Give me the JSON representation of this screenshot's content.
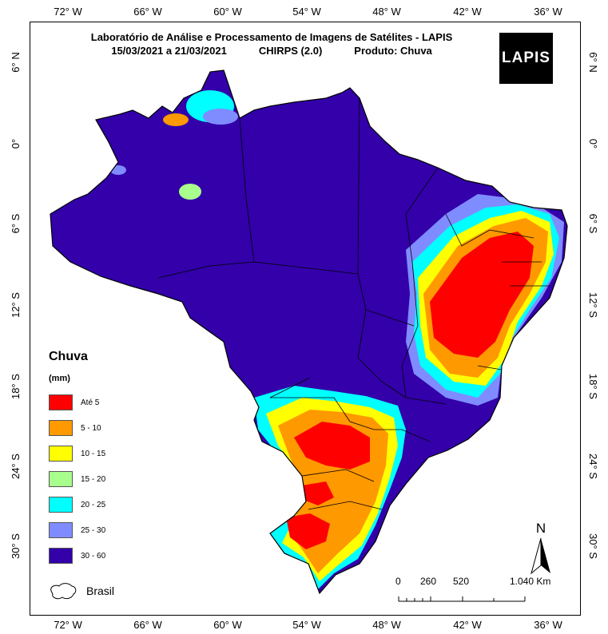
{
  "title": {
    "line1": "Laboratório de Análise e Processamento de Imagens de Satélites - LAPIS",
    "period": "15/03/2021  a 21/03/2021",
    "dataset": "CHIRPS (2.0)",
    "product": "Produto: Chuva"
  },
  "logo": {
    "text": "LAPIS"
  },
  "longitude_ticks": [
    "72° W",
    "66° W",
    "60° W",
    "54° W",
    "48° W",
    "42° W",
    "36° W"
  ],
  "latitude_ticks": [
    "6° N",
    "0°",
    "6° S",
    "12° S",
    "18° S",
    "24° S",
    "30° S"
  ],
  "legend": {
    "title": "Chuva",
    "unit": "(mm)",
    "items": [
      {
        "label": "Até 5",
        "color": "#ff0000"
      },
      {
        "label": "5 - 10",
        "color": "#ff9900"
      },
      {
        "label": "10 - 15",
        "color": "#ffff00"
      },
      {
        "label": "15 - 20",
        "color": "#a8ff8c"
      },
      {
        "label": "20 - 25",
        "color": "#00ffff"
      },
      {
        "label": "25 - 30",
        "color": "#7f8cff"
      },
      {
        "label": "30 - 60",
        "color": "#3300aa"
      }
    ],
    "outline_label": "Brasil"
  },
  "scale": {
    "labels": [
      "0",
      "260",
      "520",
      "1.040 Km"
    ]
  },
  "north": {
    "label": "N"
  }
}
